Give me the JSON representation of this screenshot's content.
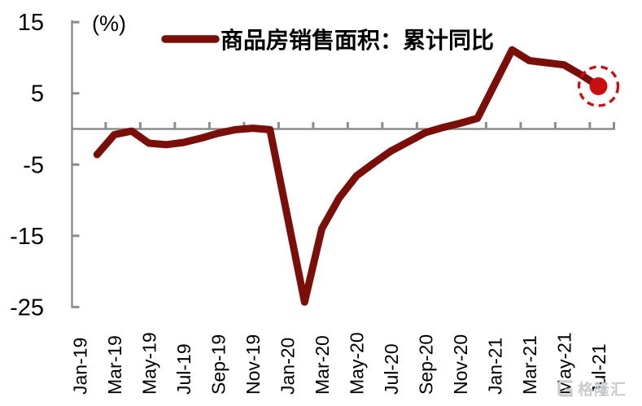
{
  "chart_data": {
    "type": "line",
    "title": "",
    "ylabel": "(%)",
    "xlabel": "",
    "grid": false,
    "legend_position": "top-center",
    "ylim": [
      -25,
      15
    ],
    "y_ticks": [
      15,
      5,
      -5,
      -15,
      -25
    ],
    "x_categories": [
      "Jan-19",
      "Feb-19",
      "Mar-19",
      "Apr-19",
      "May-19",
      "Jun-19",
      "Jul-19",
      "Aug-19",
      "Sep-19",
      "Oct-19",
      "Nov-19",
      "Dec-19",
      "Jan-20",
      "Feb-20",
      "Mar-20",
      "Apr-20",
      "May-20",
      "Jun-20",
      "Jul-20",
      "Aug-20",
      "Sep-20",
      "Oct-20",
      "Nov-20",
      "Dec-20",
      "Jan-21",
      "Feb-21",
      "Mar-21",
      "Apr-21",
      "May-21",
      "Jun-21",
      "Jul-21"
    ],
    "x_tick_labels": [
      "Jan-19",
      "Mar-19",
      "May-19",
      "Jul-19",
      "Sep-19",
      "Nov-19",
      "Jan-20",
      "Mar-20",
      "May-20",
      "Jul-20",
      "Sep-20",
      "Nov-20",
      "Jan-21",
      "Mar-21",
      "May-21",
      "Jul-21"
    ],
    "series": [
      {
        "name": "商品房销售面积：累计同比",
        "color": "#7a0e09",
        "points": [
          {
            "month": "Feb-19",
            "value": -3.6
          },
          {
            "month": "Mar-19",
            "value": -0.8
          },
          {
            "month": "Apr-19",
            "value": -0.3
          },
          {
            "month": "May-19",
            "value": -2.0
          },
          {
            "month": "Jun-19",
            "value": -2.2
          },
          {
            "month": "Jul-19",
            "value": -1.9
          },
          {
            "month": "Aug-19",
            "value": -1.3
          },
          {
            "month": "Sep-19",
            "value": -0.6
          },
          {
            "month": "Oct-19",
            "value": -0.1
          },
          {
            "month": "Nov-19",
            "value": 0.1
          },
          {
            "month": "Dec-19",
            "value": -0.1
          },
          {
            "month": "Feb-20",
            "value": -24.3
          },
          {
            "month": "Mar-20",
            "value": -14.0
          },
          {
            "month": "Apr-20",
            "value": -9.7
          },
          {
            "month": "May-20",
            "value": -6.6
          },
          {
            "month": "Jun-20",
            "value": -4.8
          },
          {
            "month": "Jul-20",
            "value": -3.1
          },
          {
            "month": "Aug-20",
            "value": -1.8
          },
          {
            "month": "Sep-20",
            "value": -0.5
          },
          {
            "month": "Oct-20",
            "value": 0.2
          },
          {
            "month": "Nov-20",
            "value": 0.8
          },
          {
            "month": "Dec-20",
            "value": 1.5
          },
          {
            "month": "Feb-21",
            "value": 11.1
          },
          {
            "month": "Mar-21",
            "value": 9.6
          },
          {
            "month": "Apr-21",
            "value": 9.3
          },
          {
            "month": "May-21",
            "value": 9.0
          },
          {
            "month": "Jun-21",
            "value": 7.6
          },
          {
            "month": "Jul-21",
            "value": 6.0
          }
        ]
      }
    ],
    "annotations": {
      "endpoint": {
        "month": "Jul-21",
        "value": 6.0,
        "marker": "red-dot",
        "highlight": "dashed-red-circle"
      }
    }
  },
  "watermark": {
    "text": "格隆汇",
    "icon": "gelonghui-logo-icon"
  },
  "colors": {
    "line": "#7a0e09",
    "endpoint": "#c9100e",
    "axis": "#8c8c8c",
    "text": "#000000",
    "watermark": "#c9cbcd",
    "background": "#ffffff"
  }
}
